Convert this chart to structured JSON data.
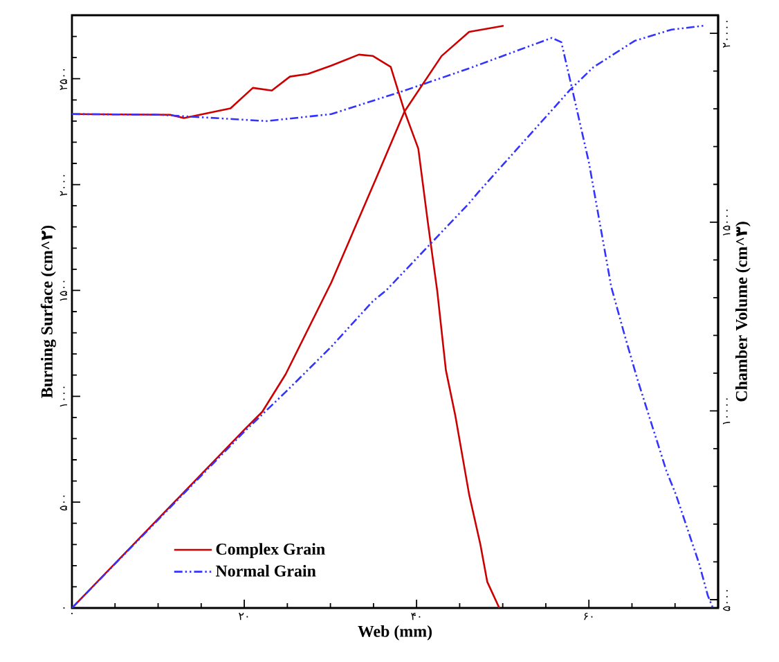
{
  "chart_data": {
    "type": "line",
    "xlabel": "Web (mm)",
    "ylabel": "Burning Surface (cm^۲)",
    "y2label": "Chamber Volume (cm^۳)",
    "xlim": [
      0,
      75
    ],
    "xticks": [
      {
        "value": 0,
        "label": "۰"
      },
      {
        "value": 5,
        "label": null
      },
      {
        "value": 10,
        "label": null
      },
      {
        "value": 15,
        "label": null
      },
      {
        "value": 20,
        "label": "۲۰"
      },
      {
        "value": 25,
        "label": null
      },
      {
        "value": 30,
        "label": null
      },
      {
        "value": 35,
        "label": null
      },
      {
        "value": 40,
        "label": "۴۰"
      },
      {
        "value": 45,
        "label": null
      },
      {
        "value": 50,
        "label": null
      },
      {
        "value": 55,
        "label": null
      },
      {
        "value": 60,
        "label": "۶۰"
      },
      {
        "value": 65,
        "label": null
      },
      {
        "value": 70,
        "label": null
      }
    ],
    "ylim": [
      0,
      2800
    ],
    "yticks": [
      {
        "value": 0,
        "label": "۰"
      },
      {
        "value": 100,
        "label": null
      },
      {
        "value": 200,
        "label": null
      },
      {
        "value": 300,
        "label": null
      },
      {
        "value": 400,
        "label": null
      },
      {
        "value": 500,
        "label": "۵۰۰"
      },
      {
        "value": 600,
        "label": null
      },
      {
        "value": 700,
        "label": null
      },
      {
        "value": 800,
        "label": null
      },
      {
        "value": 900,
        "label": null
      },
      {
        "value": 1000,
        "label": "۱۰۰۰"
      },
      {
        "value": 1100,
        "label": null
      },
      {
        "value": 1200,
        "label": null
      },
      {
        "value": 1300,
        "label": null
      },
      {
        "value": 1400,
        "label": null
      },
      {
        "value": 1500,
        "label": "۱۵۰۰"
      },
      {
        "value": 1600,
        "label": null
      },
      {
        "value": 1700,
        "label": null
      },
      {
        "value": 1800,
        "label": null
      },
      {
        "value": 1900,
        "label": null
      },
      {
        "value": 2000,
        "label": "۲۰۰۰"
      },
      {
        "value": 2100,
        "label": null
      },
      {
        "value": 2200,
        "label": null
      },
      {
        "value": 2300,
        "label": null
      },
      {
        "value": 2400,
        "label": null
      },
      {
        "value": 2500,
        "label": "۲۵۰۰"
      },
      {
        "value": 2600,
        "label": null
      },
      {
        "value": 2700,
        "label": null
      }
    ],
    "y2lim": [
      4780,
      20480
    ],
    "y2ticks": [
      {
        "value": 5000,
        "label": "۵۰۰۰"
      },
      {
        "value": 6000,
        "label": null
      },
      {
        "value": 7000,
        "label": null
      },
      {
        "value": 8000,
        "label": null
      },
      {
        "value": 9000,
        "label": null
      },
      {
        "value": 10000,
        "label": "۱۰۰۰۰"
      },
      {
        "value": 11000,
        "label": null
      },
      {
        "value": 12000,
        "label": null
      },
      {
        "value": 13000,
        "label": null
      },
      {
        "value": 14000,
        "label": null
      },
      {
        "value": 15000,
        "label": "۱۵۰۰۰"
      },
      {
        "value": 16000,
        "label": null
      },
      {
        "value": 17000,
        "label": null
      },
      {
        "value": 18000,
        "label": null
      },
      {
        "value": 19000,
        "label": null
      },
      {
        "value": 20000,
        "label": "۲۰۰۰۰"
      }
    ],
    "legend": "bottom left",
    "marker": "none",
    "grid": false,
    "series": [
      {
        "name": "Complex Grain",
        "color": "#cc0000",
        "line_style": "solid",
        "x": [
          0,
          11.4,
          13,
          18.4,
          21,
          23.2,
          25.3,
          27.4,
          30.1,
          33.3,
          34.9,
          37,
          38.6,
          40.2,
          41.3,
          42.4,
          43.4,
          44.5,
          46.1,
          47.4,
          48.2,
          49.6
        ],
        "values": [
          2333,
          2330,
          2314,
          2360,
          2457,
          2444,
          2510,
          2523,
          2562,
          2614,
          2608,
          2556,
          2346,
          2170,
          1824,
          1497,
          1124,
          908,
          536,
          301,
          124,
          0
        ]
      },
      {
        "name": "Normal Grain",
        "color": "#3333ff",
        "line_style": "dashdotdot",
        "x": [
          0,
          10,
          22.6,
          30.1,
          38.6,
          46.1,
          55.7,
          56.8,
          58.1,
          60,
          62.6,
          64.2,
          65.6,
          69,
          70.1,
          72.8,
          73.8,
          74.4
        ],
        "values": [
          2333,
          2330,
          2300,
          2333,
          2444,
          2549,
          2693,
          2673,
          2444,
          2105,
          1516,
          1281,
          1085,
          647,
          536,
          209,
          59,
          0
        ]
      },
      {
        "color": "#cc0000",
        "line_style": "solid",
        "axis": "y2",
        "x": [
          0,
          20,
          22.1,
          24.8,
          30.1,
          35.4,
          38.6,
          42.9,
          46.1,
          50.1
        ],
        "values": [
          4780,
          9500,
          9980,
          10970,
          13400,
          16210,
          17930,
          19400,
          20040,
          20200
        ]
      },
      {
        "color": "#3333ff",
        "line_style": "dashdotdot",
        "axis": "y2",
        "x": [
          0,
          20,
          24.8,
          30.1,
          34.9,
          36.5,
          46.1,
          47.2,
          57.8,
          60.5,
          65.3,
          69.6,
          73.3
        ],
        "values": [
          4780,
          9450,
          10500,
          11700,
          12900,
          13200,
          15500,
          15800,
          18500,
          19100,
          19800,
          20100,
          20200
        ]
      }
    ]
  }
}
